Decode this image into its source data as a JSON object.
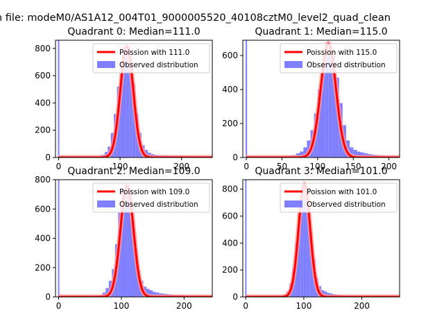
{
  "figure": {
    "title": "n file: modeM0/AS1A12_004T01_9000005520_40108cztM0_level2_quad_clean"
  },
  "colors": {
    "hist": "#8080ff",
    "model": "#ff0000",
    "model_glow": "#ff9999",
    "axes": "#000000",
    "background": "#ffffff"
  },
  "chart_data": [
    {
      "type": "bar",
      "title": "Quadrant 0: Median=111.0",
      "xlim": [
        -5,
        250
      ],
      "ylim": [
        0,
        860
      ],
      "xticks": [
        0,
        100,
        200
      ],
      "yticks": [
        0,
        200,
        400,
        600,
        800
      ],
      "legend": {
        "placement": "top-right",
        "entries": [
          "Poission with 111.0",
          "Observed distribution"
        ]
      },
      "spike": {
        "x": 0,
        "value": 860
      },
      "model": {
        "name": "Poission with 111.0",
        "mean": 111.0,
        "peak": 815
      },
      "hist": {
        "bin_width": 5,
        "bins": [
          [
            40,
            5
          ],
          [
            45,
            5
          ],
          [
            50,
            5
          ],
          [
            55,
            5
          ],
          [
            60,
            8
          ],
          [
            65,
            10
          ],
          [
            70,
            20
          ],
          [
            75,
            40
          ],
          [
            80,
            80
          ],
          [
            85,
            180
          ],
          [
            90,
            320
          ],
          [
            95,
            520
          ],
          [
            100,
            700
          ],
          [
            105,
            810
          ],
          [
            110,
            820
          ],
          [
            115,
            750
          ],
          [
            120,
            540
          ],
          [
            125,
            320
          ],
          [
            130,
            180
          ],
          [
            135,
            90
          ],
          [
            140,
            55
          ],
          [
            145,
            35
          ],
          [
            150,
            25
          ],
          [
            155,
            20
          ],
          [
            160,
            18
          ],
          [
            165,
            16
          ],
          [
            170,
            15
          ],
          [
            175,
            14
          ],
          [
            180,
            13
          ],
          [
            185,
            12
          ],
          [
            190,
            12
          ],
          [
            195,
            11
          ],
          [
            200,
            10
          ],
          [
            205,
            9
          ],
          [
            210,
            8
          ],
          [
            215,
            8
          ],
          [
            220,
            7
          ],
          [
            225,
            6
          ],
          [
            230,
            5
          ],
          [
            235,
            4
          ],
          [
            240,
            3
          ]
        ]
      }
    },
    {
      "type": "bar",
      "title": "Quadrant 1: Median=115.0",
      "xlim": [
        -5,
        215
      ],
      "ylim": [
        0,
        690
      ],
      "xticks": [
        0,
        50,
        100,
        150,
        200
      ],
      "yticks": [
        0,
        200,
        400,
        600
      ],
      "legend": {
        "placement": "top-right",
        "entries": [
          "Poission with 115.0",
          "Observed distribution"
        ]
      },
      "spike": {
        "x": 0,
        "value": 690
      },
      "model": {
        "name": "Poission with 115.0",
        "mean": 115.0,
        "peak": 670
      },
      "hist": {
        "bin_width": 5,
        "bins": [
          [
            40,
            4
          ],
          [
            45,
            5
          ],
          [
            50,
            5
          ],
          [
            55,
            6
          ],
          [
            60,
            10
          ],
          [
            65,
            15
          ],
          [
            70,
            25
          ],
          [
            75,
            35
          ],
          [
            80,
            60
          ],
          [
            85,
            100
          ],
          [
            90,
            160
          ],
          [
            95,
            260
          ],
          [
            100,
            400
          ],
          [
            105,
            560
          ],
          [
            110,
            640
          ],
          [
            115,
            660
          ],
          [
            120,
            600
          ],
          [
            125,
            470
          ],
          [
            130,
            320
          ],
          [
            135,
            190
          ],
          [
            140,
            100
          ],
          [
            145,
            60
          ],
          [
            150,
            45
          ],
          [
            155,
            35
          ],
          [
            160,
            30
          ],
          [
            165,
            25
          ],
          [
            170,
            20
          ],
          [
            175,
            17
          ],
          [
            180,
            15
          ],
          [
            185,
            12
          ],
          [
            190,
            10
          ],
          [
            195,
            8
          ],
          [
            200,
            5
          ]
        ]
      }
    },
    {
      "type": "bar",
      "title": "Quadrant 2: Median=109.0",
      "xlim": [
        -5,
        245
      ],
      "ylim": [
        0,
        800
      ],
      "xticks": [
        0,
        100,
        200
      ],
      "yticks": [
        0,
        200,
        400,
        600,
        800
      ],
      "legend": {
        "placement": "top-right",
        "entries": [
          "Poission with 109.0",
          "Observed distribution"
        ]
      },
      "spike": {
        "x": 0,
        "value": 800
      },
      "model": {
        "name": "Poission with 109.0",
        "mean": 109.0,
        "peak": 760
      },
      "hist": {
        "bin_width": 5,
        "bins": [
          [
            40,
            5
          ],
          [
            45,
            5
          ],
          [
            50,
            5
          ],
          [
            55,
            5
          ],
          [
            60,
            10
          ],
          [
            65,
            15
          ],
          [
            70,
            30
          ],
          [
            75,
            60
          ],
          [
            80,
            110
          ],
          [
            85,
            190
          ],
          [
            90,
            360
          ],
          [
            95,
            580
          ],
          [
            100,
            740
          ],
          [
            105,
            760
          ],
          [
            110,
            700
          ],
          [
            115,
            520
          ],
          [
            120,
            330
          ],
          [
            125,
            180
          ],
          [
            130,
            110
          ],
          [
            135,
            70
          ],
          [
            140,
            55
          ],
          [
            145,
            45
          ],
          [
            150,
            35
          ],
          [
            155,
            30
          ],
          [
            160,
            25
          ],
          [
            165,
            22
          ],
          [
            170,
            20
          ],
          [
            175,
            18
          ],
          [
            180,
            16
          ],
          [
            185,
            15
          ],
          [
            190,
            14
          ],
          [
            195,
            12
          ],
          [
            200,
            10
          ],
          [
            205,
            9
          ],
          [
            210,
            8
          ],
          [
            215,
            7
          ],
          [
            220,
            6
          ],
          [
            225,
            5
          ],
          [
            230,
            4
          ],
          [
            235,
            3
          ]
        ]
      }
    },
    {
      "type": "bar",
      "title": "Quadrant 3: Median=101.0",
      "xlim": [
        -5,
        265
      ],
      "ylim": [
        0,
        870
      ],
      "xticks": [
        0,
        100,
        200
      ],
      "yticks": [
        0,
        200,
        400,
        600,
        800
      ],
      "legend": {
        "placement": "top-right",
        "entries": [
          "Poission with 101.0",
          "Observed distribution"
        ]
      },
      "spike": {
        "x": 0,
        "value": 870
      },
      "model": {
        "name": "Poission with 101.0",
        "mean": 101.0,
        "peak": 835
      },
      "hist": {
        "bin_width": 5,
        "bins": [
          [
            40,
            5
          ],
          [
            45,
            5
          ],
          [
            50,
            5
          ],
          [
            55,
            6
          ],
          [
            60,
            10
          ],
          [
            65,
            20
          ],
          [
            70,
            40
          ],
          [
            75,
            100
          ],
          [
            80,
            200
          ],
          [
            85,
            400
          ],
          [
            90,
            640
          ],
          [
            95,
            820
          ],
          [
            100,
            830
          ],
          [
            105,
            700
          ],
          [
            110,
            480
          ],
          [
            115,
            280
          ],
          [
            120,
            140
          ],
          [
            125,
            80
          ],
          [
            130,
            50
          ],
          [
            135,
            40
          ],
          [
            140,
            30
          ],
          [
            145,
            25
          ],
          [
            150,
            20
          ],
          [
            155,
            18
          ],
          [
            160,
            15
          ],
          [
            165,
            12
          ],
          [
            170,
            10
          ],
          [
            175,
            9
          ],
          [
            180,
            8
          ],
          [
            185,
            7
          ],
          [
            190,
            6
          ],
          [
            195,
            5
          ],
          [
            200,
            5
          ],
          [
            205,
            4
          ],
          [
            210,
            4
          ],
          [
            215,
            3
          ],
          [
            220,
            3
          ],
          [
            225,
            2
          ],
          [
            230,
            2
          ],
          [
            235,
            2
          ],
          [
            240,
            1
          ]
        ]
      }
    }
  ]
}
